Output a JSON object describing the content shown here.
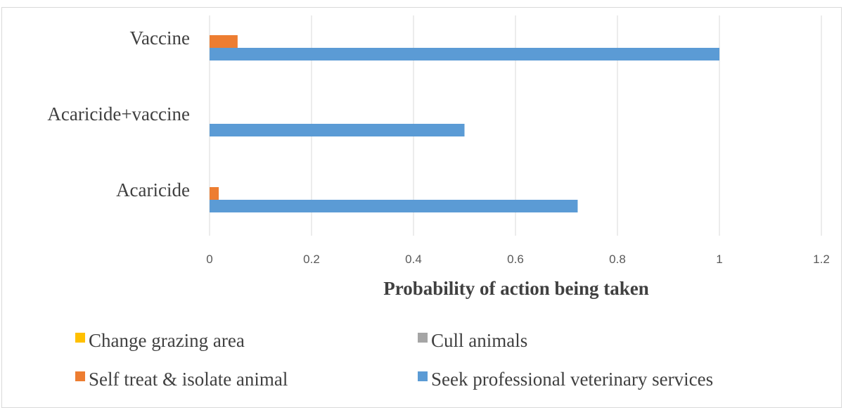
{
  "chart_data": {
    "type": "bar",
    "orientation": "horizontal",
    "categories": [
      "Vaccine",
      "Acaricide+vaccine",
      "Acaricide"
    ],
    "series": [
      {
        "name": "Change grazing area",
        "color": "#ffc000",
        "values": [
          0,
          0,
          0
        ]
      },
      {
        "name": "Cull animals",
        "color": "#a5a5a5",
        "values": [
          0,
          0,
          0
        ]
      },
      {
        "name": "Self treat & isolate animal",
        "color": "#ed7d31",
        "values": [
          0.055,
          0,
          0.018
        ]
      },
      {
        "name": "Seek professional veterinary services",
        "color": "#5b9bd5",
        "values": [
          1.0,
          0.5,
          0.722
        ]
      }
    ],
    "xlabel": "Probability of action being taken",
    "xlim": [
      0,
      1.2
    ],
    "xticks": [
      "0",
      "0.2",
      "0.4",
      "0.6",
      "0.8",
      "1",
      "1.2"
    ],
    "grid": true,
    "legend_position": "bottom"
  }
}
